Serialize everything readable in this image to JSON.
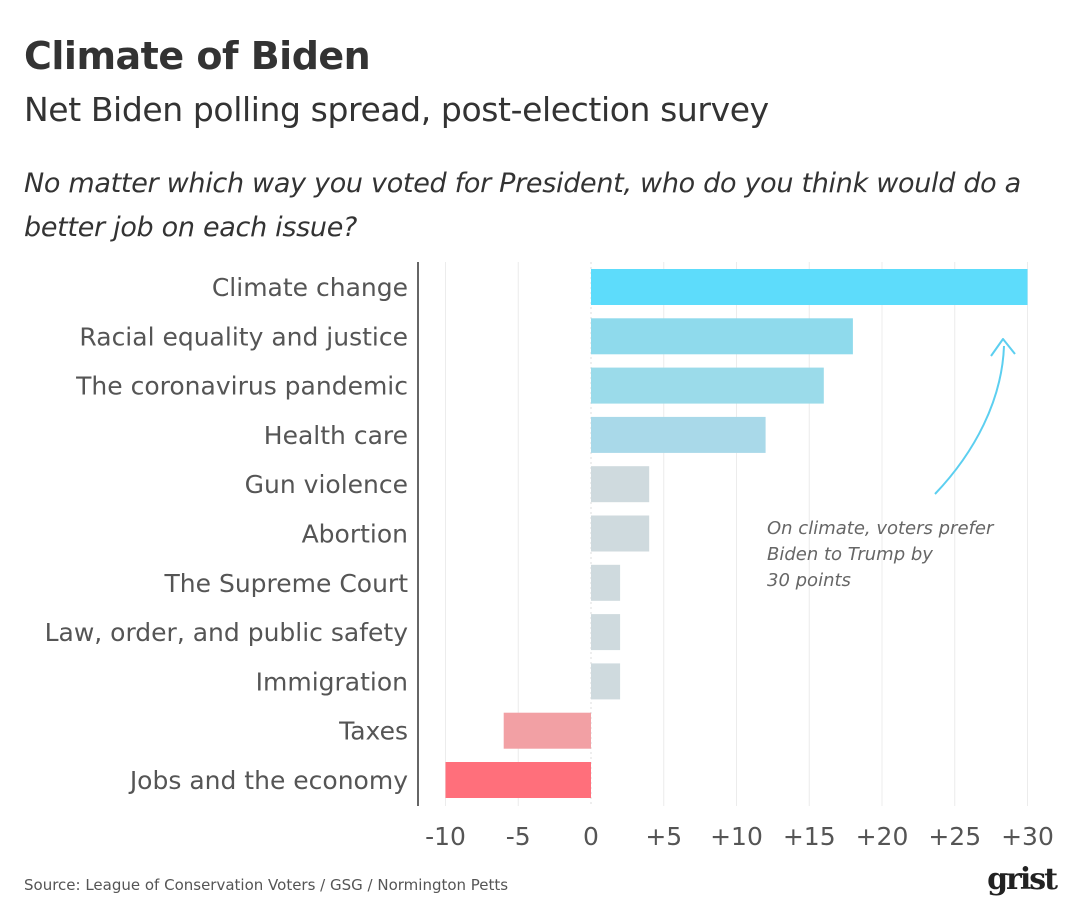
{
  "header": {
    "title": "Climate of Biden",
    "subtitle": "Net Biden polling spread, post-election survey",
    "question": "No matter which way you voted for President, who do you think would do a better job on each issue?"
  },
  "chart_data": {
    "type": "bar",
    "orientation": "horizontal",
    "title": "Climate of Biden",
    "subtitle": "Net Biden polling spread, post-election survey",
    "xlabel": "",
    "ylabel": "",
    "categories": [
      "Climate change",
      "Racial equality and justice",
      "The coronavirus pandemic",
      "Health care",
      "Gun violence",
      "Abortion",
      "The Supreme Court",
      "Law, order, and public safety",
      "Immigration",
      "Taxes",
      "Jobs and the economy"
    ],
    "values": [
      30,
      18,
      16,
      12,
      4,
      4,
      2,
      2,
      2,
      -6,
      -10
    ],
    "colors": [
      "#5ddcfb",
      "#8fdaec",
      "#9bdbea",
      "#a9d9e9",
      "#cfdade",
      "#cfdade",
      "#cfdade",
      "#cfdade",
      "#cfdade",
      "#f2a0a4",
      "#ff6f7b"
    ],
    "xlim": [
      -10,
      30
    ],
    "ticks": [
      -10,
      -5,
      0,
      5,
      10,
      15,
      20,
      25,
      30
    ],
    "tick_labels": [
      "-10",
      "-5",
      "0",
      "+5",
      "+10",
      "+15",
      "+20",
      "+25",
      "+30"
    ],
    "grid": true,
    "annotation": {
      "lines": [
        "On climate, voters prefer",
        "Biden to Trump by",
        "30 points"
      ],
      "arrow_color": "#5ccff0"
    }
  },
  "footer": {
    "source": "Source: League of Conservation Voters / GSG / Normington Petts",
    "logo": "grist"
  }
}
